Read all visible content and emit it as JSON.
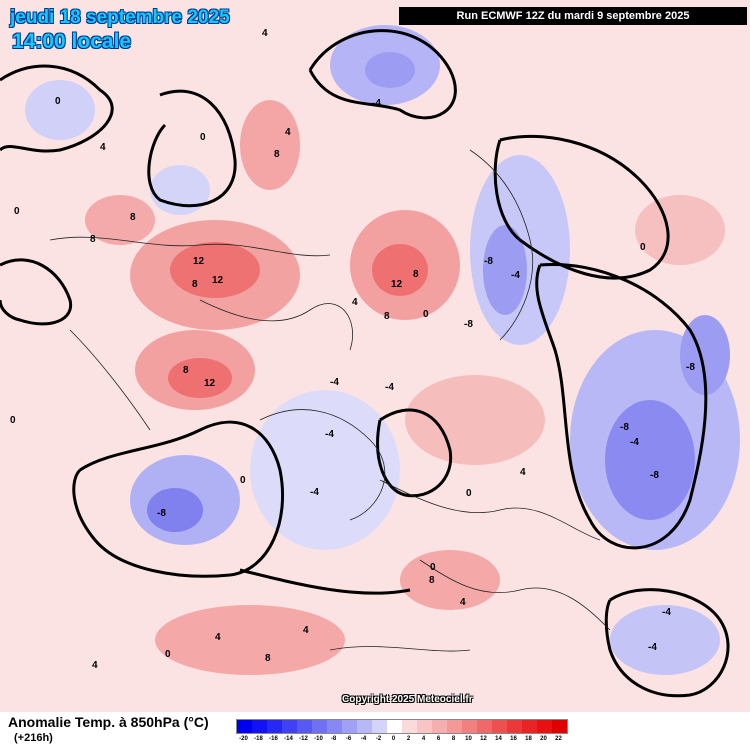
{
  "header": {
    "date_title": "jeudi 18 septembre 2025",
    "time_title": "14:00 locale",
    "run_info": "Run ECMWF 12Z du mardi 9 septembre 2025"
  },
  "copyright": "Copyright 2025 Meteociel.fr",
  "footer": {
    "title": "Anomalie Temp. à 850hPa (°C)",
    "lead_time": "(+216h)"
  },
  "legend": {
    "values": [
      "-20",
      "-18",
      "-16",
      "-14",
      "-12",
      "-10",
      "-8",
      "-6",
      "-4",
      "-2",
      "0",
      "2",
      "4",
      "6",
      "8",
      "10",
      "12",
      "14",
      "16",
      "18",
      "20",
      "22"
    ],
    "colors": [
      "#0000f0",
      "#1212f4",
      "#2828f4",
      "#4040f4",
      "#5858f4",
      "#7070f4",
      "#8888f4",
      "#a0a0f6",
      "#b8b8f8",
      "#d4d4fa",
      "#ffffff",
      "#fadada",
      "#f8c4c4",
      "#f6aeae",
      "#f49898",
      "#f28080",
      "#f06868",
      "#ee5050",
      "#ec3838",
      "#ea2424",
      "#e81010",
      "#e00000"
    ]
  },
  "map": {
    "land_color": "#fbe3e3",
    "contour_labels": [
      {
        "text": "0"
      },
      {
        "text": "4"
      },
      {
        "text": "0"
      },
      {
        "text": "4"
      },
      {
        "text": "0"
      },
      {
        "text": "8"
      },
      {
        "text": "4"
      },
      {
        "text": "8"
      },
      {
        "text": "8"
      },
      {
        "text": "12"
      },
      {
        "text": "12"
      },
      {
        "text": "8"
      },
      {
        "text": "12"
      },
      {
        "text": "8"
      },
      {
        "text": "12"
      },
      {
        "text": "8"
      },
      {
        "text": "8"
      },
      {
        "text": "4"
      },
      {
        "text": "0"
      },
      {
        "text": "-4"
      },
      {
        "text": "-4"
      },
      {
        "text": "-8"
      },
      {
        "text": "-4"
      },
      {
        "text": "-8"
      },
      {
        "text": "-8"
      },
      {
        "text": "-4"
      },
      {
        "text": "-8"
      },
      {
        "text": "-8"
      },
      {
        "text": "-4"
      },
      {
        "text": "0"
      },
      {
        "text": "-4"
      },
      {
        "text": "0"
      },
      {
        "text": "-8"
      },
      {
        "text": "0"
      },
      {
        "text": "4"
      },
      {
        "text": "8"
      },
      {
        "text": "4"
      },
      {
        "text": "4"
      },
      {
        "text": "8"
      },
      {
        "text": "4"
      },
      {
        "text": "0"
      },
      {
        "text": "-4"
      },
      {
        "text": "-4"
      },
      {
        "text": "0"
      },
      {
        "text": "-4"
      },
      {
        "text": "4"
      },
      {
        "text": "0"
      }
    ]
  }
}
